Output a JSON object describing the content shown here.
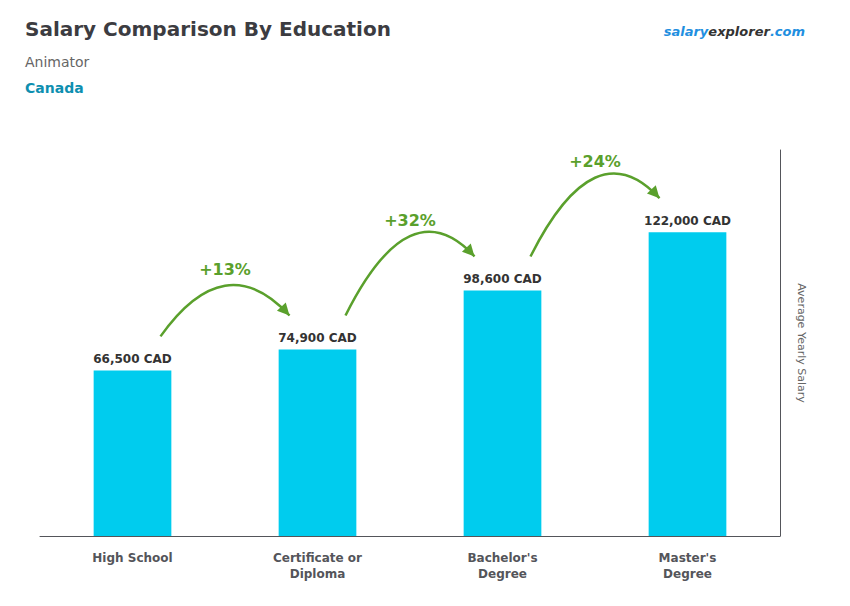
{
  "chart_data": {
    "type": "bar",
    "title": "Salary Comparison By Education",
    "subtitle": [
      "Animator",
      "Canada"
    ],
    "watermark": [
      "salary",
      "explorer",
      ".com"
    ],
    "ylabel": "Average Yearly Salary",
    "categories": [
      "High School",
      "Certificate or\nDiploma",
      "Bachelor's\nDegree",
      "Master's\nDegree"
    ],
    "values": [
      66500,
      74900,
      98600,
      122000
    ],
    "value_labels": [
      "66,500 CAD",
      "74,900 CAD",
      "98,600 CAD",
      "122,000 CAD"
    ],
    "data_labels": true,
    "annotations": [
      "+13%",
      "+32%",
      "+24%"
    ],
    "color": "#00ccee",
    "ylim": [
      0,
      155000
    ],
    "tick_labels": "x",
    "grid": false
  }
}
